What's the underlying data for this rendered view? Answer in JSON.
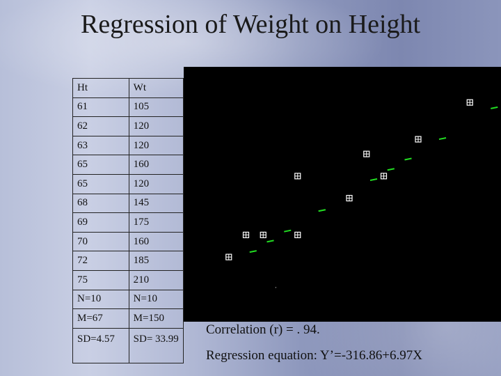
{
  "slide": {
    "title": "Regression of Weight on Height",
    "table": {
      "headers": [
        "Ht",
        "Wt"
      ],
      "rows": [
        [
          "61",
          "105"
        ],
        [
          "62",
          "120"
        ],
        [
          "63",
          "120"
        ],
        [
          "65",
          "160"
        ],
        [
          "65",
          "120"
        ],
        [
          "68",
          "145"
        ],
        [
          "69",
          "175"
        ],
        [
          "70",
          "160"
        ],
        [
          "72",
          "185"
        ],
        [
          "75",
          "210"
        ],
        [
          "N=10",
          "N=10"
        ],
        [
          "M=67",
          "M=150"
        ],
        [
          "SD=4.57",
          "SD= 33.99"
        ]
      ]
    },
    "correlation_text": "Correlation (r) = . 94.",
    "regression_text": "Regression equation:  Y’=-316.86+6.97X"
  },
  "colors": {
    "plot_background": "#000000",
    "marker": "#ffffff",
    "residual": "#22dd22"
  },
  "chart_data": {
    "type": "scatter",
    "series": [
      {
        "x": [
          61,
          62,
          63,
          65,
          65,
          68,
          69,
          70,
          72,
          75
        ],
        "y": [
          105,
          120,
          120,
          160,
          120,
          145,
          175,
          160,
          185,
          210
        ]
      }
    ],
    "xlim": [
      60,
      76
    ],
    "ylim": [
      80,
      220
    ],
    "grid": false,
    "regression": {
      "intercept": -316.86,
      "slope": 6.97
    }
  }
}
